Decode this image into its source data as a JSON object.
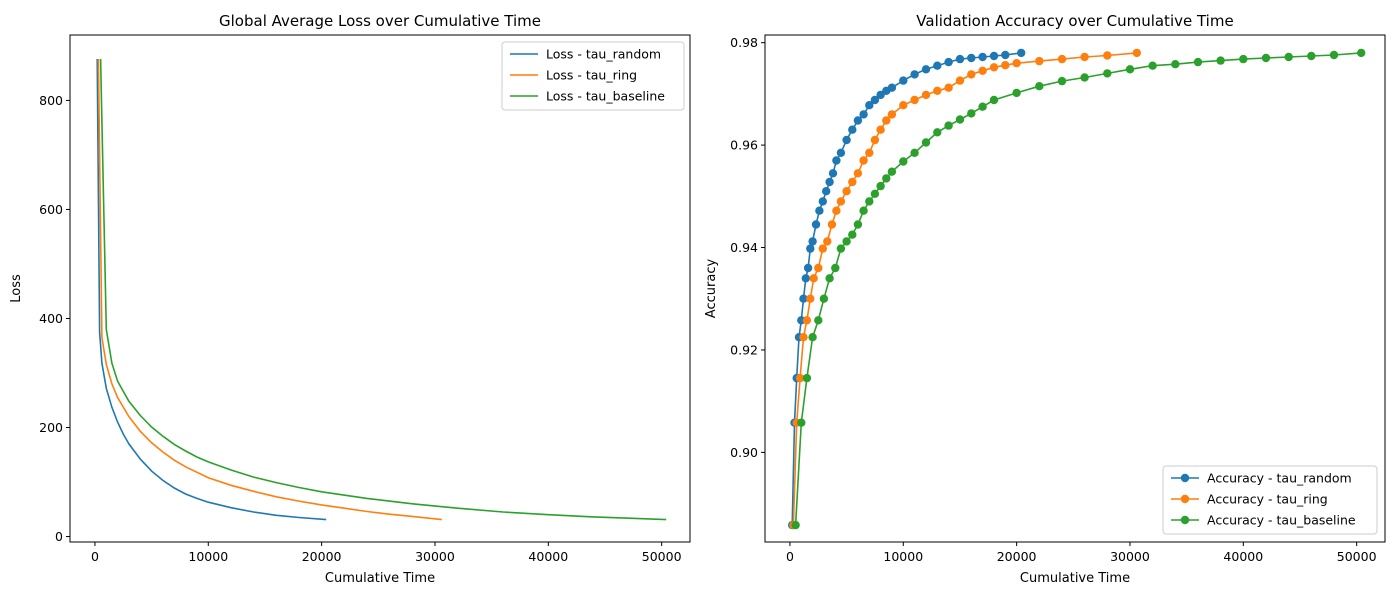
{
  "chart_data": [
    {
      "type": "line",
      "title": "Global Average Loss over Cumulative Time",
      "xlabel": "Cumulative Time",
      "ylabel": "Loss",
      "xlim": [
        -2200,
        52500
      ],
      "ylim": [
        -10,
        920
      ],
      "xticks": [
        {
          "v": 0,
          "label": "0"
        },
        {
          "v": 10000,
          "label": "10000"
        },
        {
          "v": 20000,
          "label": "20000"
        },
        {
          "v": 30000,
          "label": "30000"
        },
        {
          "v": 40000,
          "label": "40000"
        },
        {
          "v": 50000,
          "label": "50000"
        }
      ],
      "yticks": [
        {
          "v": 0,
          "label": "0"
        },
        {
          "v": 200,
          "label": "200"
        },
        {
          "v": 400,
          "label": "400"
        },
        {
          "v": 600,
          "label": "600"
        },
        {
          "v": 800,
          "label": "800"
        }
      ],
      "grid": false,
      "legend": "top-right",
      "series": [
        {
          "name": "Loss - tau_random",
          "color": "#1f77b4",
          "markers": false,
          "x": [
            204,
            408,
            612,
            1000,
            1500,
            2000,
            2500,
            3000,
            4000,
            5000,
            6000,
            7000,
            8000,
            9000,
            10000,
            12000,
            14000,
            16000,
            18000,
            20400
          ],
          "y": [
            876,
            375,
            318,
            272,
            237,
            210,
            188,
            170,
            142,
            120,
            103,
            89,
            78,
            70,
            63,
            53,
            45,
            39,
            35,
            31
          ]
        },
        {
          "name": "Loss - tau_ring",
          "color": "#ff7f0e",
          "markers": false,
          "x": [
            306,
            612,
            1000,
            1500,
            2000,
            3000,
            4000,
            5000,
            6000,
            7000,
            8000,
            10000,
            12000,
            14000,
            16000,
            18000,
            20000,
            22000,
            24000,
            26000,
            28000,
            30600
          ],
          "y": [
            876,
            365,
            316,
            280,
            255,
            220,
            193,
            172,
            155,
            140,
            128,
            108,
            94,
            83,
            73,
            65,
            58,
            52,
            46,
            41,
            37,
            31
          ]
        },
        {
          "name": "Loss - tau_baseline",
          "color": "#2ca02c",
          "markers": false,
          "x": [
            500,
            1000,
            1500,
            2000,
            3000,
            4000,
            5000,
            6000,
            7000,
            8000,
            9000,
            10000,
            12000,
            14000,
            16000,
            18000,
            20000,
            24000,
            28000,
            32000,
            36000,
            40000,
            44000,
            48000,
            50400
          ],
          "y": [
            876,
            380,
            318,
            285,
            248,
            222,
            201,
            184,
            169,
            157,
            146,
            137,
            122,
            109,
            99,
            90,
            82,
            70,
            60,
            52,
            45,
            40,
            36,
            33,
            31
          ]
        }
      ]
    },
    {
      "type": "line",
      "title": "Validation Accuracy over Cumulative Time",
      "xlabel": "Cumulative Time",
      "ylabel": "Accuracy",
      "xlim": [
        -2200,
        52500
      ],
      "ylim": [
        0.8825,
        0.9815
      ],
      "xticks": [
        {
          "v": 0,
          "label": "0"
        },
        {
          "v": 10000,
          "label": "10000"
        },
        {
          "v": 20000,
          "label": "20000"
        },
        {
          "v": 30000,
          "label": "30000"
        },
        {
          "v": 40000,
          "label": "40000"
        },
        {
          "v": 50000,
          "label": "50000"
        }
      ],
      "yticks": [
        {
          "v": 0.9,
          "label": "0.90"
        },
        {
          "v": 0.92,
          "label": "0.92"
        },
        {
          "v": 0.94,
          "label": "0.94"
        },
        {
          "v": 0.96,
          "label": "0.96"
        },
        {
          "v": 0.98,
          "label": "0.98"
        }
      ],
      "grid": false,
      "legend": "bottom-right",
      "series": [
        {
          "name": "Accuracy - tau_random",
          "color": "#1f77b4",
          "markers": true,
          "x": [
            204,
            400,
            600,
            800,
            1000,
            1200,
            1400,
            1600,
            1800,
            2000,
            2300,
            2600,
            2900,
            3200,
            3500,
            3800,
            4100,
            4500,
            5000,
            5500,
            6000,
            6500,
            7000,
            7500,
            8000,
            8500,
            9000,
            10000,
            11000,
            12000,
            13000,
            14000,
            15000,
            16000,
            17000,
            18000,
            19000,
            20400
          ],
          "y": [
            0.8858,
            0.9058,
            0.9145,
            0.9225,
            0.9258,
            0.93,
            0.934,
            0.936,
            0.9398,
            0.9412,
            0.9445,
            0.9472,
            0.949,
            0.951,
            0.9528,
            0.9545,
            0.957,
            0.9585,
            0.961,
            0.963,
            0.9648,
            0.966,
            0.9678,
            0.9688,
            0.9698,
            0.9706,
            0.9712,
            0.9726,
            0.9738,
            0.9748,
            0.9755,
            0.9762,
            0.9768,
            0.977,
            0.9772,
            0.9774,
            0.9776,
            0.978
          ]
        },
        {
          "name": "Accuracy - tau_ring",
          "color": "#ff7f0e",
          "markers": true,
          "x": [
            306,
            600,
            900,
            1200,
            1500,
            1800,
            2100,
            2500,
            2900,
            3300,
            3700,
            4100,
            4500,
            5000,
            5500,
            6000,
            6500,
            7000,
            7500,
            8000,
            8500,
            9000,
            10000,
            11000,
            12000,
            13000,
            14000,
            15000,
            16000,
            17000,
            18000,
            19000,
            20000,
            22000,
            24000,
            26000,
            28000,
            30600
          ],
          "y": [
            0.8858,
            0.9058,
            0.9145,
            0.9225,
            0.9258,
            0.93,
            0.934,
            0.936,
            0.9398,
            0.9412,
            0.9445,
            0.9472,
            0.949,
            0.951,
            0.9528,
            0.9545,
            0.957,
            0.9585,
            0.961,
            0.963,
            0.9648,
            0.966,
            0.9678,
            0.9688,
            0.9698,
            0.9706,
            0.9712,
            0.9726,
            0.9738,
            0.9745,
            0.9752,
            0.9756,
            0.976,
            0.9764,
            0.9768,
            0.9772,
            0.9775,
            0.978
          ]
        },
        {
          "name": "Accuracy - tau_baseline",
          "color": "#2ca02c",
          "markers": true,
          "x": [
            500,
            1000,
            1500,
            2000,
            2500,
            3000,
            3500,
            4000,
            4500,
            5000,
            5500,
            6000,
            6500,
            7000,
            7500,
            8000,
            8500,
            9000,
            10000,
            11000,
            12000,
            13000,
            14000,
            15000,
            16000,
            17000,
            18000,
            20000,
            22000,
            24000,
            26000,
            28000,
            30000,
            32000,
            34000,
            36000,
            38000,
            40000,
            42000,
            44000,
            46000,
            48000,
            50400
          ],
          "y": [
            0.8858,
            0.9058,
            0.9145,
            0.9225,
            0.9258,
            0.93,
            0.934,
            0.936,
            0.9398,
            0.9412,
            0.9425,
            0.9445,
            0.9472,
            0.949,
            0.9505,
            0.952,
            0.9535,
            0.9548,
            0.9568,
            0.9585,
            0.9605,
            0.9625,
            0.9638,
            0.965,
            0.9662,
            0.9675,
            0.9688,
            0.9702,
            0.9715,
            0.9725,
            0.9732,
            0.974,
            0.9748,
            0.9755,
            0.9758,
            0.9762,
            0.9765,
            0.9768,
            0.977,
            0.9772,
            0.9774,
            0.9776,
            0.978
          ]
        }
      ]
    }
  ]
}
